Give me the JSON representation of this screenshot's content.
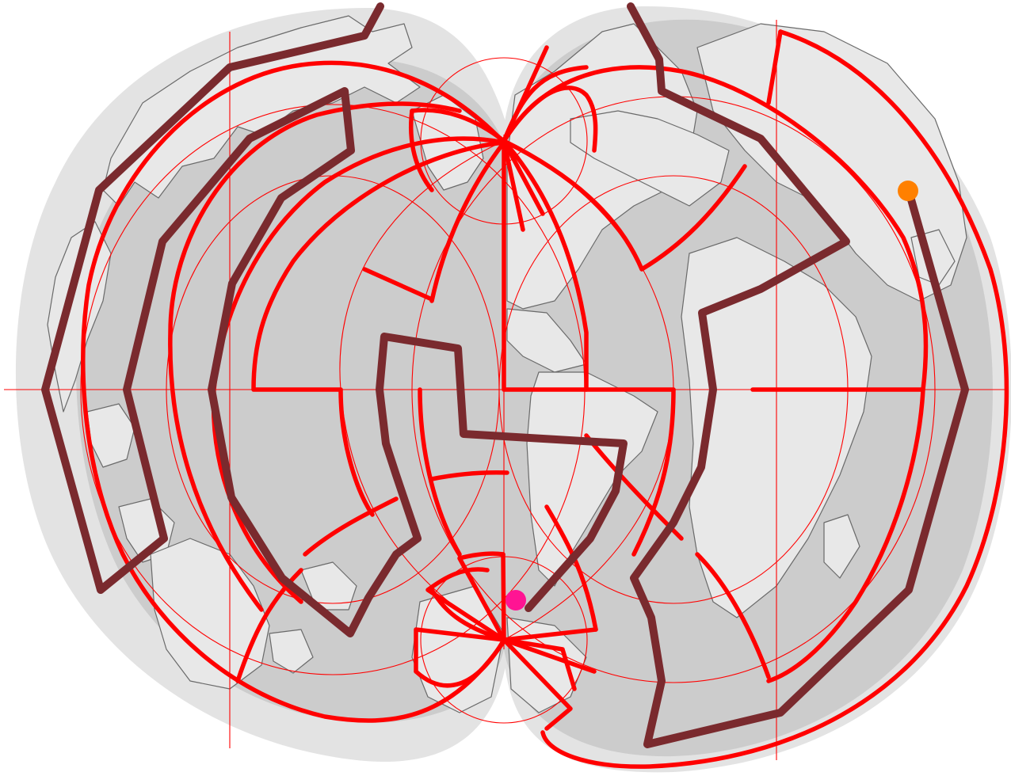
{
  "puzzle": {
    "type": "world-projection-maze",
    "colors": {
      "ocean": "#cccccc",
      "ocean_halo": "#e3e3e3",
      "land": "#e8e8e8",
      "coastline": "#6a6a6a",
      "wall": "#ff0000",
      "graticule": "#ff0000",
      "route": "#7a2a2e",
      "start_marker": "#ff8000",
      "end_marker": "#ff1493"
    },
    "markers": {
      "start": {
        "name": "start-marker",
        "color": "#ff8000"
      },
      "end": {
        "name": "end-marker",
        "color": "#ff1493"
      }
    }
  }
}
